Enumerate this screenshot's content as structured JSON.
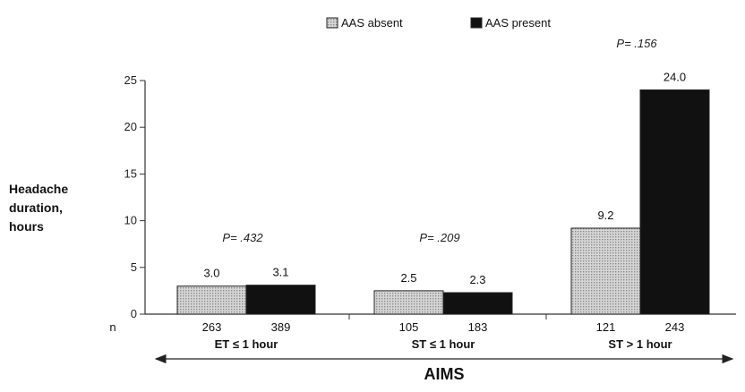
{
  "chart_data": {
    "type": "bar",
    "title": "",
    "ylabel_lines": [
      "Headache",
      "duration,",
      "hours"
    ],
    "xlabel": "AIMS",
    "ylim": [
      0,
      25
    ],
    "yticks": [
      0,
      5,
      10,
      15,
      20,
      25
    ],
    "n_label": "n",
    "series": [
      {
        "name": "AAS absent",
        "color": "#c9c9c9",
        "pattern": "dotted"
      },
      {
        "name": "AAS present",
        "color": "#111111",
        "pattern": "solid"
      }
    ],
    "groups": [
      {
        "label": "ET ≤ 1 hour",
        "p_value": "P= .432",
        "values": [
          3.0,
          3.1
        ],
        "value_labels": [
          "3.0",
          "3.1"
        ],
        "n": [
          "263",
          "389"
        ]
      },
      {
        "label": "ST ≤ 1 hour",
        "p_value": "P= .209",
        "values": [
          2.5,
          2.3
        ],
        "value_labels": [
          "2.5",
          "2.3"
        ],
        "n": [
          "105",
          "183"
        ]
      },
      {
        "label": "ST > 1 hour",
        "p_value": "P= .156",
        "values": [
          9.2,
          24.0
        ],
        "value_labels": [
          "9.2",
          "24.0"
        ],
        "n": [
          "121",
          "243"
        ]
      }
    ],
    "grid": false,
    "legend_position": "top-center"
  }
}
